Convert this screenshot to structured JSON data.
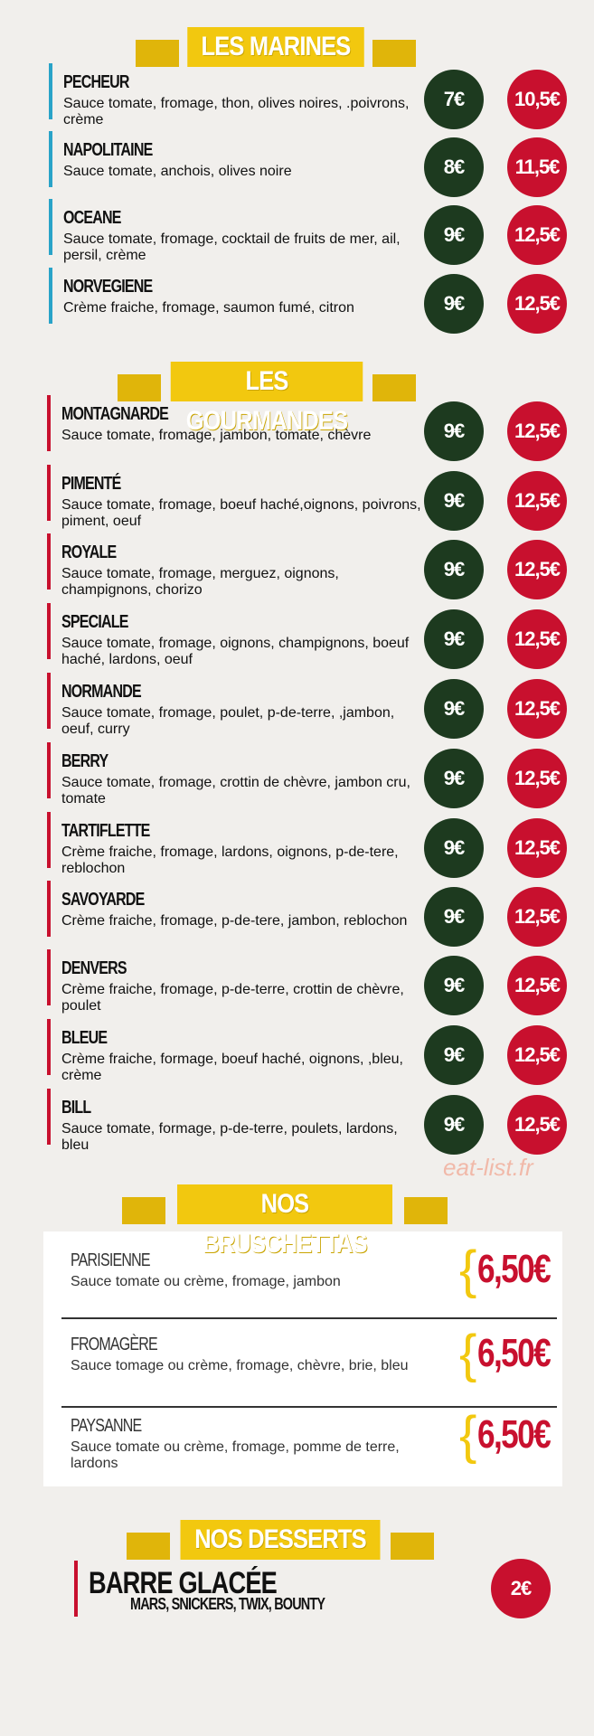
{
  "sections": [
    {
      "title": "LES MARINES",
      "items": [
        {
          "name": "PECHEUR",
          "description": "Sauce tomate, fromage, thon, olives noires, .poivrons, crème",
          "prices": [
            "7€",
            "10,5€"
          ]
        },
        {
          "name": "NAPOLITAINE",
          "description": "Sauce tomate, anchois, olives noire",
          "prices": [
            "8€",
            "11,5€"
          ]
        },
        {
          "name": "OCEANE",
          "description": "Sauce tomate, fromage,  cocktail de fruits de mer, ail, persil, crème",
          "prices": [
            "9€",
            "12,5€"
          ]
        },
        {
          "name": "NORVEGIENE",
          "description": "Crème fraiche, fromage, saumon fumé, citron",
          "prices": [
            "9€",
            "12,5€"
          ]
        }
      ]
    },
    {
      "title": "LES GOURMANDES",
      "items": [
        {
          "name": "MONTAGNARDE",
          "description": "Sauce tomate, fromage,  jambon, tomate, chèvre",
          "prices": [
            "9€",
            "12,5€"
          ]
        },
        {
          "name": "PIMENTÉ",
          "description": "Sauce tomate, fromage,  boeuf haché,oignons, poivrons, piment, oeuf",
          "prices": [
            "9€",
            "12,5€"
          ]
        },
        {
          "name": "ROYALE",
          "description": "Sauce tomate, fromage,  merguez, oignons, champignons, chorizo",
          "prices": [
            "9€",
            "12,5€"
          ]
        },
        {
          "name": "SPECIALE",
          "description": "Sauce tomate, fromage,  oignons, champignons, boeuf haché, lardons, oeuf",
          "prices": [
            "9€",
            "12,5€"
          ]
        },
        {
          "name": "NORMANDE",
          "description": "Sauce tomate, fromage, poulet, p-de-terre, ,jambon, oeuf, curry",
          "prices": [
            "9€",
            "12,5€"
          ]
        },
        {
          "name": "BERRY",
          "description": "Sauce tomate, fromage, crottin de chèvre, jambon cru, tomate",
          "prices": [
            "9€",
            "12,5€"
          ]
        },
        {
          "name": "TARTIFLETTE",
          "description": "Crème fraiche, fromage, lardons, oignons, p-de-tere, reblochon",
          "prices": [
            "9€",
            "12,5€"
          ]
        },
        {
          "name": "SAVOYARDE",
          "description": "Crème fraiche, fromage, p-de-tere, jambon, reblochon",
          "prices": [
            "9€",
            "12,5€"
          ]
        },
        {
          "name": "DENVERS",
          "description": "Crème fraiche, fromage, p-de-terre, crottin de chèvre, poulet",
          "prices": [
            "9€",
            "12,5€"
          ]
        },
        {
          "name": "BLEUE",
          "description": "Crème fraiche, formage, boeuf haché, oignons, ,bleu, crème",
          "prices": [
            "9€",
            "12,5€"
          ]
        },
        {
          "name": "BILL",
          "description": "Sauce tomate, formage, p-de-terre, poulets, lardons, bleu",
          "prices": [
            "9€",
            "12,5€"
          ]
        }
      ]
    },
    {
      "title": "NOS BRUSCHETTAS",
      "items": [
        {
          "name": "PARISIENNE",
          "description": "Sauce tomate ou crème, fromage, jambon",
          "prices": [
            "6,50€"
          ]
        },
        {
          "name": "FROMAGÈRE",
          "description": "Sauce tomage ou crème, fromage, chèvre, brie, bleu",
          "prices": [
            "6,50€"
          ]
        },
        {
          "name": "PAYSANNE",
          "description": "Sauce tomate ou crème, fromage, pomme de terre, lardons",
          "prices": [
            "6,50€"
          ]
        }
      ]
    },
    {
      "title": "NOS DESSERTS",
      "items": [
        {
          "name": "BARRE GLACÉE",
          "description": "MARS, SNICKERS, TWIX, BOUNTY",
          "prices": [
            "2€"
          ]
        }
      ]
    }
  ],
  "watermark": "eat-list.fr"
}
